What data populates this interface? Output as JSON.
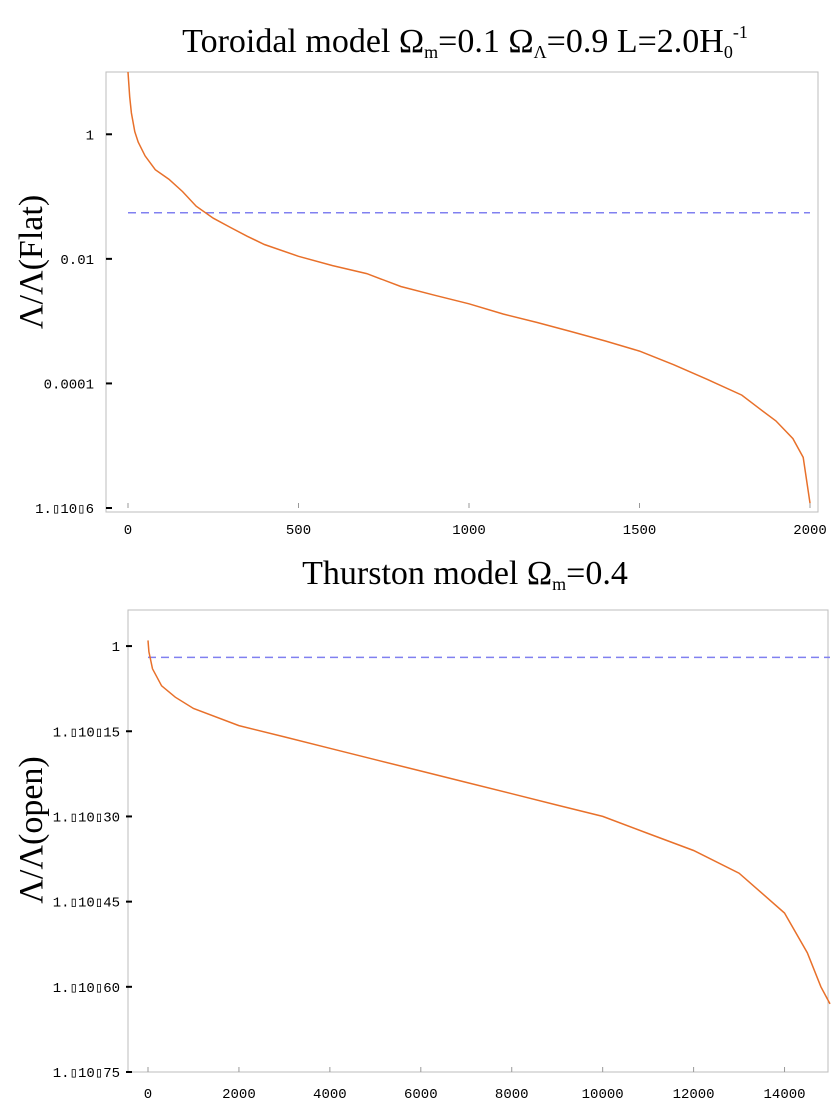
{
  "chart_data": [
    {
      "type": "line",
      "title_parts": [
        "Toroidal model Ω",
        "m",
        "=0.1 Ω",
        "Λ",
        "=0.9 L=2.0H",
        "0",
        "-1"
      ],
      "ylabel": "Λ/Λ(Flat)",
      "xlabel": "",
      "y_scale": "log",
      "xlim": [
        0,
        2000
      ],
      "ylim": [
        1e-06,
        10
      ],
      "x_ticks": [
        {
          "value": 0,
          "label": "0"
        },
        {
          "value": 500,
          "label": "500"
        },
        {
          "value": 1000,
          "label": "1000"
        },
        {
          "value": 1500,
          "label": "1500"
        },
        {
          "value": 2000,
          "label": "2000"
        }
      ],
      "y_ticks": [
        {
          "value": 1,
          "label": "1"
        },
        {
          "value": 0.01,
          "label": "0.01"
        },
        {
          "value": 0.0001,
          "label": "0.0001"
        },
        {
          "value": 1e-06,
          "label": "1.▯10▯6"
        }
      ],
      "reference_line": {
        "y": 0.055,
        "style": "dashed",
        "color": "#8080f0"
      },
      "series": [
        {
          "color": "#e8702a",
          "points": [
            [
              0,
              10
            ],
            [
              5,
              4
            ],
            [
              10,
              2.2
            ],
            [
              20,
              1.1
            ],
            [
              30,
              0.75
            ],
            [
              50,
              0.45
            ],
            [
              80,
              0.27
            ],
            [
              120,
              0.19
            ],
            [
              160,
              0.12
            ],
            [
              200,
              0.07
            ],
            [
              250,
              0.045
            ],
            [
              300,
              0.032
            ],
            [
              350,
              0.023
            ],
            [
              400,
              0.017
            ],
            [
              500,
              0.011
            ],
            [
              600,
              0.0078
            ],
            [
              700,
              0.0058
            ],
            [
              800,
              0.0036
            ],
            [
              900,
              0.0026
            ],
            [
              1000,
              0.0019
            ],
            [
              1100,
              0.0013
            ],
            [
              1200,
              0.00095
            ],
            [
              1300,
              0.00068
            ],
            [
              1400,
              0.00048
            ],
            [
              1500,
              0.00033
            ],
            [
              1600,
              0.0002
            ],
            [
              1700,
              0.000115
            ],
            [
              1800,
              6.5e-05
            ],
            [
              1850,
              4e-05
            ],
            [
              1900,
              2.5e-05
            ],
            [
              1950,
              1.3e-05
            ],
            [
              1980,
              6.5e-06
            ],
            [
              2000,
              1.2e-06
            ]
          ]
        }
      ]
    },
    {
      "type": "line",
      "title_parts": [
        "Thurston model Ω",
        "m",
        "=0.4"
      ],
      "ylabel": "Λ/Λ(open)",
      "xlabel": "",
      "y_scale": "log",
      "xlim": [
        0,
        15000
      ],
      "ylim": [
        1e-75,
        1000000.0
      ],
      "x_ticks": [
        {
          "value": 0,
          "label": "0"
        },
        {
          "value": 2000,
          "label": "2000"
        },
        {
          "value": 4000,
          "label": "4000"
        },
        {
          "value": 6000,
          "label": "6000"
        },
        {
          "value": 8000,
          "label": "8000"
        },
        {
          "value": 10000,
          "label": "10000"
        },
        {
          "value": 12000,
          "label": "12000"
        },
        {
          "value": 14000,
          "label": "14000"
        }
      ],
      "y_ticks": [
        {
          "value": 1,
          "label": "1"
        },
        {
          "value": 1e-15,
          "label": "1.▯10▯15"
        },
        {
          "value": 1e-30,
          "label": "1.▯10▯30"
        },
        {
          "value": 1e-45,
          "label": "1.▯10▯45"
        },
        {
          "value": 1e-60,
          "label": "1.▯10▯60"
        },
        {
          "value": 1e-75,
          "label": "1.▯10▯75"
        }
      ],
      "reference_line": {
        "y": 0.01,
        "style": "dashed",
        "color": "#8080f0"
      },
      "series": [
        {
          "color": "#e8702a",
          "points": [
            [
              0,
              10
            ],
            [
              20,
              0.1
            ],
            [
              100,
              0.0001
            ],
            [
              300,
              1e-07
            ],
            [
              600,
              1e-09
            ],
            [
              1000,
              1e-11
            ],
            [
              2000,
              1e-14
            ],
            [
              3000,
              1e-16
            ],
            [
              4000,
              1e-18
            ],
            [
              5000,
              1e-20
            ],
            [
              6000,
              1e-22
            ],
            [
              7000,
              1e-24
            ],
            [
              8000,
              1e-26
            ],
            [
              9000,
              1e-28
            ],
            [
              10000,
              1e-30
            ],
            [
              11000,
              1e-33
            ],
            [
              12000,
              1e-36
            ],
            [
              13000,
              1e-40
            ],
            [
              14000,
              1e-47
            ],
            [
              14500,
              1e-54
            ],
            [
              14800,
              1e-60
            ],
            [
              15000,
              1e-63
            ]
          ]
        }
      ]
    }
  ]
}
